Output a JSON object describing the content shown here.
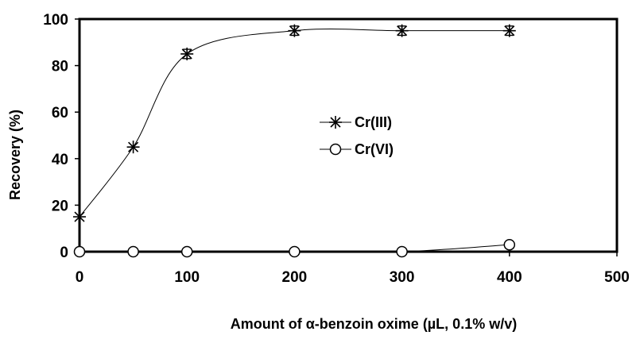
{
  "chart_data": {
    "type": "scatter",
    "xlabel": "Amount of α-benzoin oxime (µL, 0.1% w/v)",
    "ylabel": "Recovery (%)",
    "xlim": [
      0,
      500
    ],
    "ylim": [
      0,
      100
    ],
    "x_ticks": [
      0,
      100,
      200,
      300,
      400,
      500
    ],
    "y_ticks": [
      0,
      20,
      40,
      60,
      80,
      100
    ],
    "grid": false,
    "legend_position": "center",
    "series": [
      {
        "name": "Cr(III)",
        "marker": "asterisk",
        "smoothed_line": true,
        "x": [
          0,
          50,
          100,
          200,
          300,
          400
        ],
        "y": [
          15,
          45,
          85,
          95,
          95,
          95
        ],
        "error": [
          0,
          0,
          2,
          2,
          2,
          2
        ]
      },
      {
        "name": "Cr(VI)",
        "marker": "circle",
        "smoothed_line": true,
        "x": [
          0,
          50,
          100,
          200,
          300,
          400
        ],
        "y": [
          0,
          0,
          0,
          0,
          0,
          3
        ],
        "error": [
          0,
          0,
          0,
          0,
          0,
          0
        ]
      }
    ]
  }
}
